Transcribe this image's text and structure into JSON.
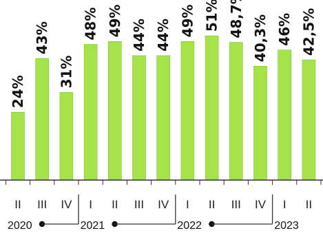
{
  "chart_data": {
    "type": "bar",
    "categories": [
      "II",
      "III",
      "IV",
      "I",
      "II",
      "III",
      "IV",
      "I",
      "II",
      "III",
      "IV",
      "I",
      "II"
    ],
    "values": [
      24,
      43,
      31,
      48,
      49,
      44,
      44,
      49,
      51,
      48.7,
      40.3,
      46,
      42.5
    ],
    "value_labels": [
      "24%",
      "43%",
      "31%",
      "48%",
      "49%",
      "44%",
      "44%",
      "49%",
      "51%",
      "48,7%",
      "40,3%",
      "46%",
      "42,5%"
    ],
    "years": [
      {
        "label": "2020",
        "quarters": [
          "II",
          "III",
          "IV"
        ]
      },
      {
        "label": "2021",
        "quarters": [
          "I",
          "II",
          "III",
          "IV"
        ]
      },
      {
        "label": "2022",
        "quarters": [
          "I",
          "II",
          "III",
          "IV"
        ]
      },
      {
        "label": "2023",
        "quarters": [
          "I",
          "II"
        ]
      }
    ],
    "ylim": [
      0,
      52
    ],
    "grid": false,
    "colors": {
      "bar": "#a6e34a",
      "bar_edge": "#7cc62c",
      "text": "#111111",
      "axis": "#333333"
    }
  }
}
